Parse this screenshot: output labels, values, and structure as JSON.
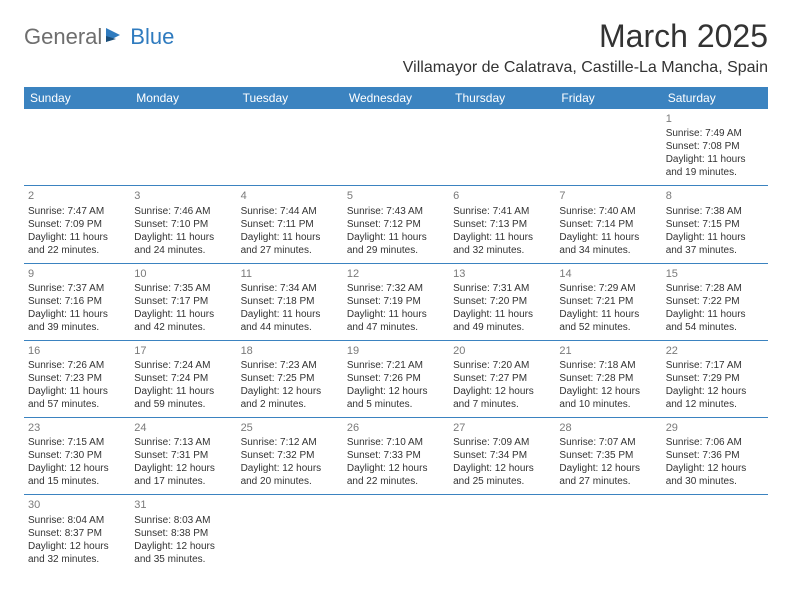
{
  "logo": {
    "gray": "General",
    "blue": "Blue"
  },
  "title": "March 2025",
  "location": "Villamayor de Calatrava, Castille-La Mancha, Spain",
  "colors": {
    "header_bg": "#3b83c0",
    "header_fg": "#ffffff",
    "border": "#3b83c0",
    "daynum": "#7a7a7a",
    "logo_gray": "#6e6e6e",
    "logo_blue": "#2f7bbf"
  },
  "weekdays": [
    "Sunday",
    "Monday",
    "Tuesday",
    "Wednesday",
    "Thursday",
    "Friday",
    "Saturday"
  ],
  "weeks": [
    [
      null,
      null,
      null,
      null,
      null,
      null,
      {
        "n": "1",
        "sr": "Sunrise: 7:49 AM",
        "ss": "Sunset: 7:08 PM",
        "dl": "Daylight: 11 hours and 19 minutes."
      }
    ],
    [
      {
        "n": "2",
        "sr": "Sunrise: 7:47 AM",
        "ss": "Sunset: 7:09 PM",
        "dl": "Daylight: 11 hours and 22 minutes."
      },
      {
        "n": "3",
        "sr": "Sunrise: 7:46 AM",
        "ss": "Sunset: 7:10 PM",
        "dl": "Daylight: 11 hours and 24 minutes."
      },
      {
        "n": "4",
        "sr": "Sunrise: 7:44 AM",
        "ss": "Sunset: 7:11 PM",
        "dl": "Daylight: 11 hours and 27 minutes."
      },
      {
        "n": "5",
        "sr": "Sunrise: 7:43 AM",
        "ss": "Sunset: 7:12 PM",
        "dl": "Daylight: 11 hours and 29 minutes."
      },
      {
        "n": "6",
        "sr": "Sunrise: 7:41 AM",
        "ss": "Sunset: 7:13 PM",
        "dl": "Daylight: 11 hours and 32 minutes."
      },
      {
        "n": "7",
        "sr": "Sunrise: 7:40 AM",
        "ss": "Sunset: 7:14 PM",
        "dl": "Daylight: 11 hours and 34 minutes."
      },
      {
        "n": "8",
        "sr": "Sunrise: 7:38 AM",
        "ss": "Sunset: 7:15 PM",
        "dl": "Daylight: 11 hours and 37 minutes."
      }
    ],
    [
      {
        "n": "9",
        "sr": "Sunrise: 7:37 AM",
        "ss": "Sunset: 7:16 PM",
        "dl": "Daylight: 11 hours and 39 minutes."
      },
      {
        "n": "10",
        "sr": "Sunrise: 7:35 AM",
        "ss": "Sunset: 7:17 PM",
        "dl": "Daylight: 11 hours and 42 minutes."
      },
      {
        "n": "11",
        "sr": "Sunrise: 7:34 AM",
        "ss": "Sunset: 7:18 PM",
        "dl": "Daylight: 11 hours and 44 minutes."
      },
      {
        "n": "12",
        "sr": "Sunrise: 7:32 AM",
        "ss": "Sunset: 7:19 PM",
        "dl": "Daylight: 11 hours and 47 minutes."
      },
      {
        "n": "13",
        "sr": "Sunrise: 7:31 AM",
        "ss": "Sunset: 7:20 PM",
        "dl": "Daylight: 11 hours and 49 minutes."
      },
      {
        "n": "14",
        "sr": "Sunrise: 7:29 AM",
        "ss": "Sunset: 7:21 PM",
        "dl": "Daylight: 11 hours and 52 minutes."
      },
      {
        "n": "15",
        "sr": "Sunrise: 7:28 AM",
        "ss": "Sunset: 7:22 PM",
        "dl": "Daylight: 11 hours and 54 minutes."
      }
    ],
    [
      {
        "n": "16",
        "sr": "Sunrise: 7:26 AM",
        "ss": "Sunset: 7:23 PM",
        "dl": "Daylight: 11 hours and 57 minutes."
      },
      {
        "n": "17",
        "sr": "Sunrise: 7:24 AM",
        "ss": "Sunset: 7:24 PM",
        "dl": "Daylight: 11 hours and 59 minutes."
      },
      {
        "n": "18",
        "sr": "Sunrise: 7:23 AM",
        "ss": "Sunset: 7:25 PM",
        "dl": "Daylight: 12 hours and 2 minutes."
      },
      {
        "n": "19",
        "sr": "Sunrise: 7:21 AM",
        "ss": "Sunset: 7:26 PM",
        "dl": "Daylight: 12 hours and 5 minutes."
      },
      {
        "n": "20",
        "sr": "Sunrise: 7:20 AM",
        "ss": "Sunset: 7:27 PM",
        "dl": "Daylight: 12 hours and 7 minutes."
      },
      {
        "n": "21",
        "sr": "Sunrise: 7:18 AM",
        "ss": "Sunset: 7:28 PM",
        "dl": "Daylight: 12 hours and 10 minutes."
      },
      {
        "n": "22",
        "sr": "Sunrise: 7:17 AM",
        "ss": "Sunset: 7:29 PM",
        "dl": "Daylight: 12 hours and 12 minutes."
      }
    ],
    [
      {
        "n": "23",
        "sr": "Sunrise: 7:15 AM",
        "ss": "Sunset: 7:30 PM",
        "dl": "Daylight: 12 hours and 15 minutes."
      },
      {
        "n": "24",
        "sr": "Sunrise: 7:13 AM",
        "ss": "Sunset: 7:31 PM",
        "dl": "Daylight: 12 hours and 17 minutes."
      },
      {
        "n": "25",
        "sr": "Sunrise: 7:12 AM",
        "ss": "Sunset: 7:32 PM",
        "dl": "Daylight: 12 hours and 20 minutes."
      },
      {
        "n": "26",
        "sr": "Sunrise: 7:10 AM",
        "ss": "Sunset: 7:33 PM",
        "dl": "Daylight: 12 hours and 22 minutes."
      },
      {
        "n": "27",
        "sr": "Sunrise: 7:09 AM",
        "ss": "Sunset: 7:34 PM",
        "dl": "Daylight: 12 hours and 25 minutes."
      },
      {
        "n": "28",
        "sr": "Sunrise: 7:07 AM",
        "ss": "Sunset: 7:35 PM",
        "dl": "Daylight: 12 hours and 27 minutes."
      },
      {
        "n": "29",
        "sr": "Sunrise: 7:06 AM",
        "ss": "Sunset: 7:36 PM",
        "dl": "Daylight: 12 hours and 30 minutes."
      }
    ],
    [
      {
        "n": "30",
        "sr": "Sunrise: 8:04 AM",
        "ss": "Sunset: 8:37 PM",
        "dl": "Daylight: 12 hours and 32 minutes."
      },
      {
        "n": "31",
        "sr": "Sunrise: 8:03 AM",
        "ss": "Sunset: 8:38 PM",
        "dl": "Daylight: 12 hours and 35 minutes."
      },
      null,
      null,
      null,
      null,
      null
    ]
  ]
}
